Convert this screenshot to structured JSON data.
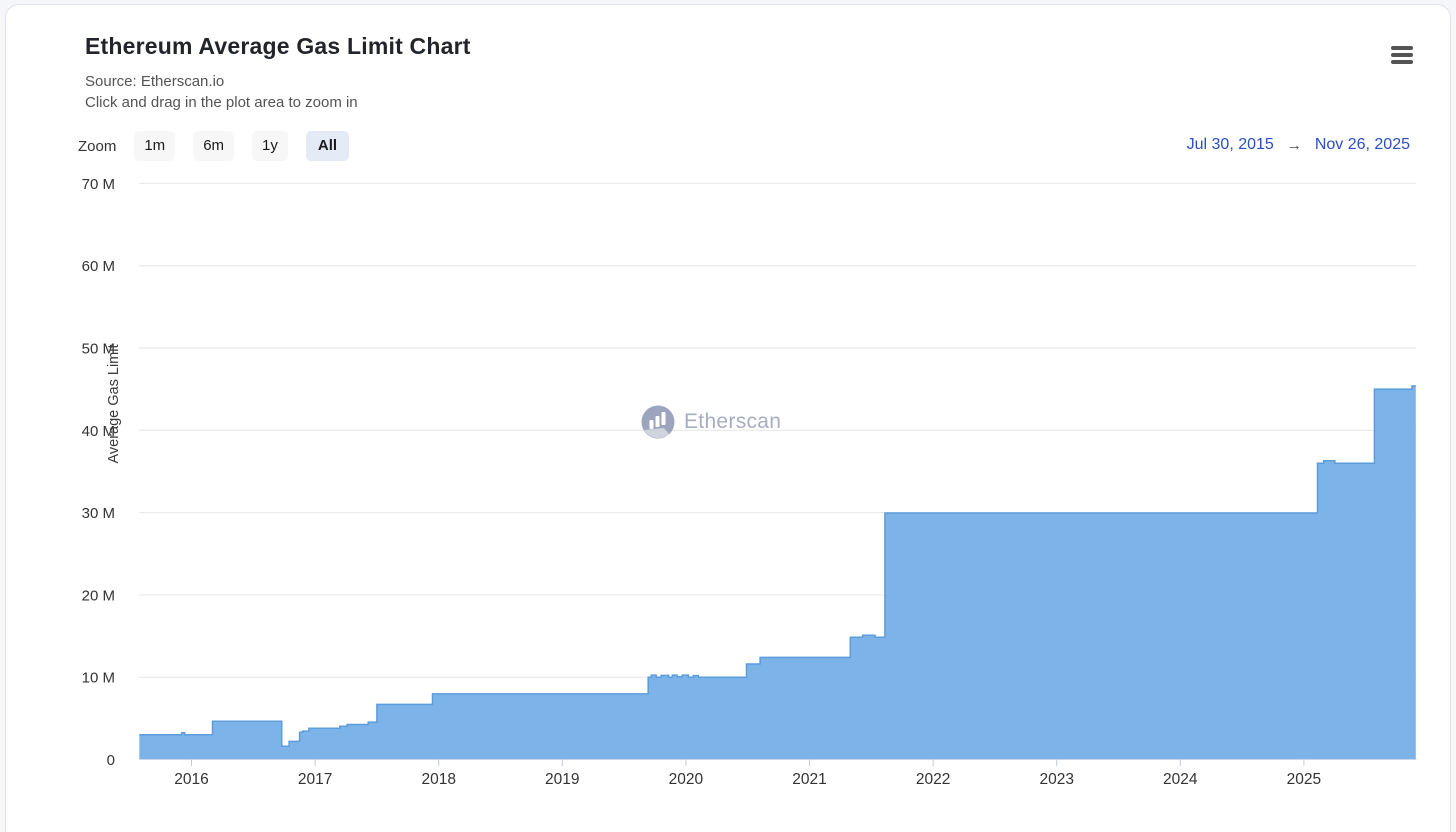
{
  "header": {
    "title": "Ethereum Average Gas Limit Chart",
    "subtitle_source": "Source: Etherscan.io",
    "subtitle_hint": "Click and drag in the plot area to zoom in"
  },
  "toolbar": {
    "zoom_label": "Zoom",
    "buttons": [
      {
        "label": "1m",
        "selected": false
      },
      {
        "label": "6m",
        "selected": false
      },
      {
        "label": "1y",
        "selected": false
      },
      {
        "label": "All",
        "selected": true
      }
    ]
  },
  "range": {
    "from": "Jul 30, 2015",
    "arrow": "→",
    "to": "Nov 26, 2025"
  },
  "watermark": {
    "text": "Etherscan"
  },
  "chart_data": {
    "type": "area",
    "title": "Ethereum Average Gas Limit Chart",
    "series_name": "Average Gas Limit",
    "ylabel": "Average Gas Limit",
    "ylim_m": [
      0,
      70
    ],
    "ytick_step_m": 10,
    "yticks": [
      {
        "value_m": 0,
        "label": "0"
      },
      {
        "value_m": 10,
        "label": "10 M"
      },
      {
        "value_m": 20,
        "label": "20 M"
      },
      {
        "value_m": 30,
        "label": "30 M"
      },
      {
        "value_m": 40,
        "label": "40 M"
      },
      {
        "value_m": 50,
        "label": "50 M"
      },
      {
        "value_m": 60,
        "label": "60 M"
      },
      {
        "value_m": 70,
        "label": "70 M"
      }
    ],
    "xticks": [
      2016,
      2017,
      2018,
      2019,
      2020,
      2021,
      2022,
      2023,
      2024,
      2025
    ],
    "x_range_years": [
      2015.578,
      2025.905
    ],
    "grid": true,
    "legend": "none",
    "points_step_year_valueM": [
      [
        2015.578,
        3.0
      ],
      [
        2015.92,
        3.25
      ],
      [
        2015.945,
        3.0
      ],
      [
        2016.17,
        4.65
      ],
      [
        2016.73,
        1.6
      ],
      [
        2016.79,
        2.2
      ],
      [
        2016.875,
        3.3
      ],
      [
        2016.9,
        3.45
      ],
      [
        2016.95,
        3.8
      ],
      [
        2017.2,
        4.05
      ],
      [
        2017.26,
        4.25
      ],
      [
        2017.43,
        4.55
      ],
      [
        2017.5,
        6.7
      ],
      [
        2017.95,
        7.97
      ],
      [
        2019.695,
        10.0
      ],
      [
        2019.72,
        10.25
      ],
      [
        2019.76,
        10.0
      ],
      [
        2019.8,
        10.22
      ],
      [
        2019.86,
        10.0
      ],
      [
        2019.89,
        10.25
      ],
      [
        2019.93,
        10.05
      ],
      [
        2019.97,
        10.25
      ],
      [
        2020.02,
        10.0
      ],
      [
        2020.06,
        10.2
      ],
      [
        2020.1,
        10.0
      ],
      [
        2020.49,
        11.6
      ],
      [
        2020.6,
        12.4
      ],
      [
        2021.33,
        14.85
      ],
      [
        2021.43,
        15.1
      ],
      [
        2021.53,
        14.85
      ],
      [
        2021.61,
        29.95
      ],
      [
        2025.11,
        36.0
      ],
      [
        2025.16,
        36.3
      ],
      [
        2025.25,
        36.0
      ],
      [
        2025.57,
        45.0
      ],
      [
        2025.875,
        45.4
      ]
    ],
    "colors": {
      "area_fill": "#7cb4ea",
      "area_line": "#5d9cdb",
      "grid_line": "#e6e6e6",
      "axis_line": "#ccd6eb",
      "tick_label": "#333333",
      "range_text": "#2a4dc2"
    }
  }
}
